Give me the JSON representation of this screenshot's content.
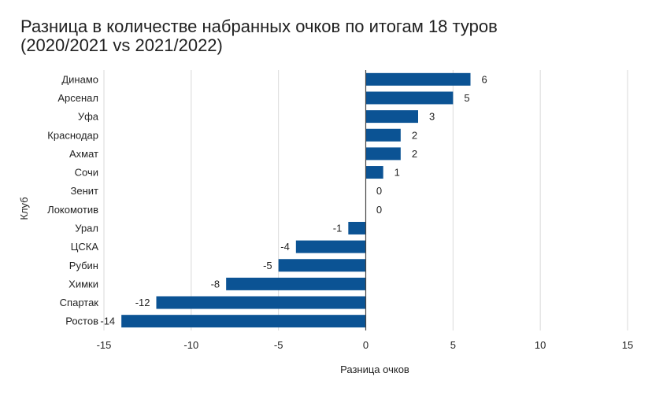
{
  "title_line1": "Разница в количестве набранных очков по итогам 18 туров",
  "title_line2": "(2020/2021 vs 2021/2022)",
  "chart_data": {
    "type": "bar",
    "orientation": "horizontal",
    "xlabel": "Разница очков",
    "ylabel": "Клуб",
    "xlim": [
      -15,
      15
    ],
    "xticks": [
      -15,
      -10,
      -5,
      0,
      5,
      10,
      15
    ],
    "grid": true,
    "bar_color": "#0b5394",
    "categories": [
      "Динамо",
      "Арсенал",
      "Уфа",
      "Краснодар",
      "Ахмат",
      "Сочи",
      "Зенит",
      "Локомотив",
      "Урал",
      "ЦСКА",
      "Рубин",
      "Химки",
      "Спартак",
      "Ростов"
    ],
    "values": [
      6,
      5,
      3,
      2,
      2,
      1,
      0,
      0,
      -1,
      -4,
      -5,
      -8,
      -12,
      -14
    ]
  }
}
